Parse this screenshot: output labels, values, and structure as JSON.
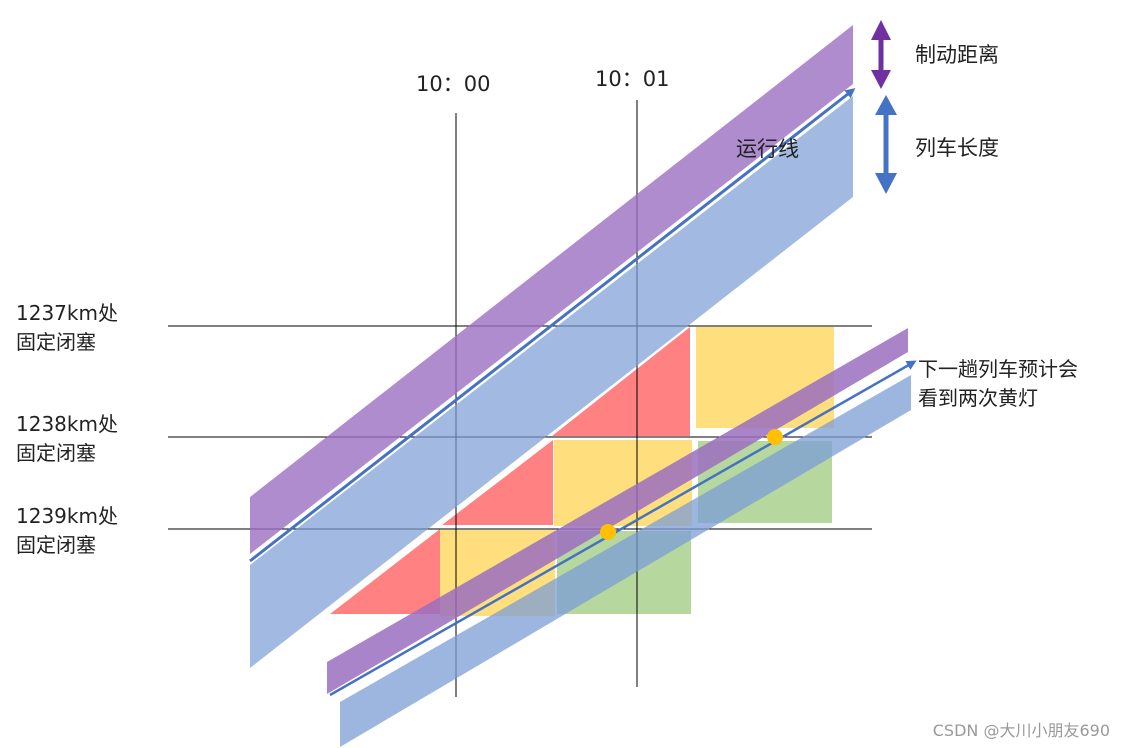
{
  "time_labels": [
    "10：00",
    "10：01"
  ],
  "blocks": [
    {
      "line1": "1237km处",
      "line2": "固定闭塞"
    },
    {
      "line1": "1238km处",
      "line2": "固定闭塞"
    },
    {
      "line1": "1239km处",
      "line2": "固定闭塞"
    }
  ],
  "legend": {
    "braking_distance": "制动距离",
    "train_length": "列车长度"
  },
  "run_line_label": "运行线",
  "next_train_note": {
    "line1": "下一趟列车预计会",
    "line2": "看到两次黄灯"
  },
  "watermark": "CSDN @大川小朋友690",
  "colors": {
    "braking_band": "#9b6fc0",
    "train_band": "#7b9dd6",
    "run_line": "#4472c4",
    "red_zone": "#ff6b6b",
    "yellow_zone": "#ffd966",
    "green_zone": "#a9d18e",
    "legend_braking_arrow": "#7030a0",
    "legend_train_arrow": "#4472c4",
    "signal_dot": "#ffc000"
  }
}
